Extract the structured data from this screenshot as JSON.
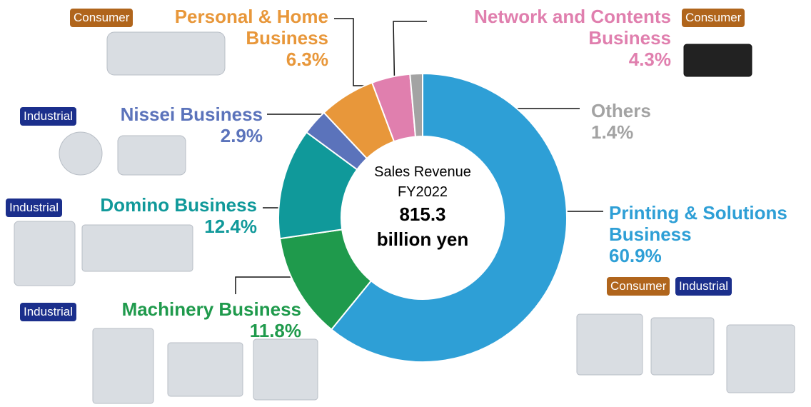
{
  "chart_data": {
    "type": "pie",
    "donut": true,
    "categories": [
      "Printing & Solutions Business",
      "Machinery Business",
      "Domino Business",
      "Nissei Business",
      "Personal & Home Business",
      "Network and Contents Business",
      "Others"
    ],
    "values": [
      60.9,
      11.8,
      12.4,
      2.9,
      6.3,
      4.3,
      1.4
    ],
    "value_labels": [
      "60.9%",
      "11.8%",
      "12.4%",
      "2.9%",
      "6.3%",
      "4.3%",
      "1.4%"
    ],
    "colors": [
      "#2e9fd6",
      "#1f9a4c",
      "#10999a",
      "#5b73bb",
      "#e8973a",
      "#e07fae",
      "#a3a3a3"
    ],
    "tags": [
      [
        "Consumer",
        "Industrial"
      ],
      [
        "Industrial"
      ],
      [
        "Industrial"
      ],
      [
        "Industrial"
      ],
      [
        "Consumer"
      ],
      [
        "Consumer"
      ],
      []
    ],
    "center_text": [
      "Sales Revenue",
      "FY2022",
      "815.3",
      "billion yen"
    ]
  }
}
